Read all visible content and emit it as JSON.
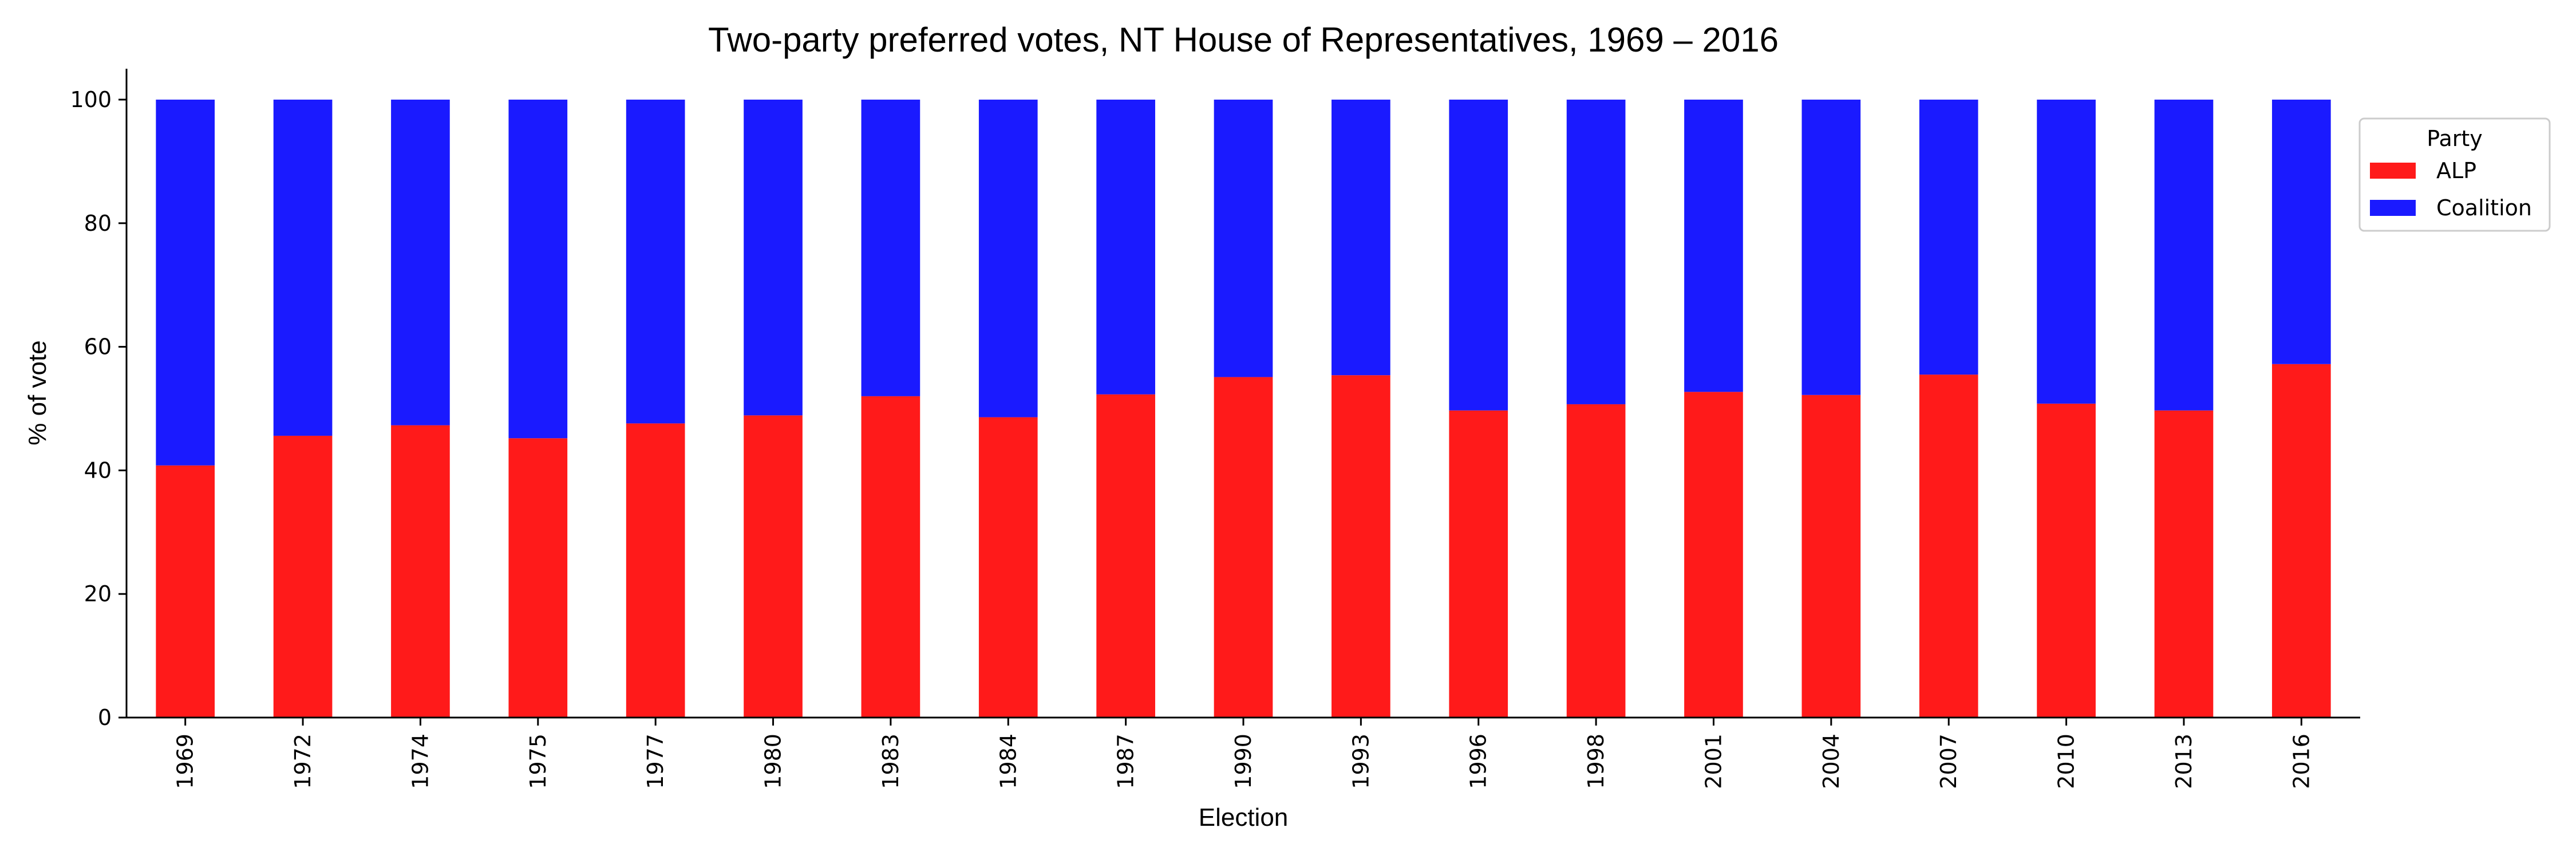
{
  "chart_data": {
    "type": "bar",
    "stacked": true,
    "title": "Two-party preferred votes, NT House of Representatives, 1969 – 2016",
    "xlabel": "Election",
    "ylabel": "% of vote",
    "ylim": [
      0,
      105
    ],
    "yticks": [
      "0",
      "20",
      "40",
      "60",
      "80",
      "100"
    ],
    "grid": false,
    "legend": {
      "title": "Party",
      "position": "right-top"
    },
    "categories": [
      "1969",
      "1972",
      "1974",
      "1975",
      "1977",
      "1980",
      "1983",
      "1984",
      "1987",
      "1990",
      "1993",
      "1996",
      "1998",
      "2001",
      "2004",
      "2007",
      "2010",
      "2013",
      "2016"
    ],
    "series": [
      {
        "name": "ALP",
        "color": "#ff1a1a",
        "values": [
          40.8,
          45.6,
          47.3,
          45.2,
          47.6,
          48.9,
          52.0,
          48.6,
          52.3,
          55.1,
          55.4,
          49.7,
          50.7,
          52.7,
          52.2,
          55.5,
          50.8,
          49.7,
          57.2
        ]
      },
      {
        "name": "Coalition",
        "color": "#1a1aff",
        "values": [
          59.2,
          54.4,
          52.7,
          54.8,
          52.4,
          51.1,
          48.0,
          51.4,
          47.7,
          44.9,
          44.6,
          50.3,
          49.3,
          47.3,
          47.8,
          44.5,
          49.2,
          50.3,
          42.8
        ]
      }
    ]
  }
}
